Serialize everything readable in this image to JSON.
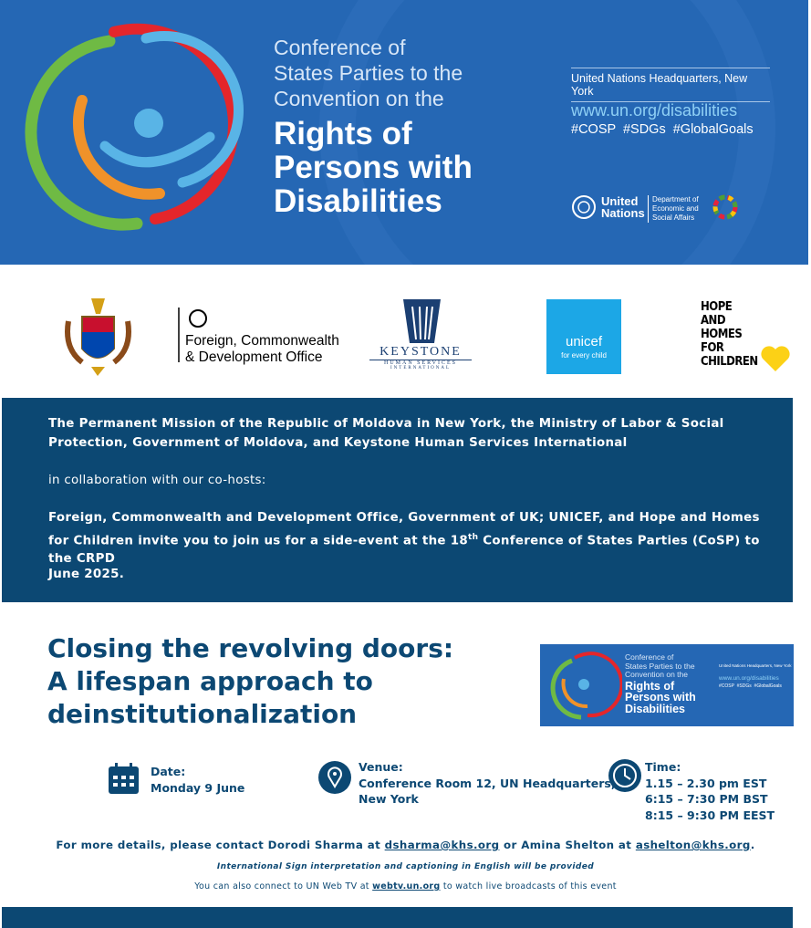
{
  "banner": {
    "title_small": [
      "Conference of",
      "States Parties to the",
      "Convention on the"
    ],
    "title_big": [
      "Rights of",
      "Persons with",
      "Disabilities"
    ],
    "location": "United Nations Headquarters, New York",
    "url": "www.un.org/disabilities",
    "hashtags": "#COSP  #SDGs  #GlobalGoals",
    "un_name": [
      "United",
      "Nations"
    ],
    "desa": [
      "Department of",
      "Economic and",
      "Social Affairs"
    ]
  },
  "logos": {
    "fcdo": [
      "Foreign, Commonwealth",
      "& Development Office"
    ],
    "keystone": [
      "KEYSTONE",
      "HUMAN SERVICES",
      "INTERNATIONAL"
    ],
    "unicef": [
      "unicef",
      "for every child"
    ],
    "hope": [
      "HOPE",
      "AND",
      "HOMES",
      "FOR",
      "CHILDREN"
    ]
  },
  "invite": {
    "p1": "The Permanent Mission of the Republic of Moldova in New York, the Ministry of Labor & Social Protection, Government of Moldova, and Keystone Human Services International",
    "p2": "in collaboration with our co-hosts:",
    "p3": [
      "Foreign, Commonwealth and Development Office, Government of UK; UNICEF, and Hope and Homes for Children invite you to join us for a side-event at the 18",
      "th",
      " Conference of States Parties (CoSP) to the CRPD"
    ],
    "p4": "June 2025."
  },
  "event": {
    "title": [
      "Closing the revolving doors:",
      "A lifespan approach to",
      "deinstitutionalization"
    ]
  },
  "details": {
    "date": {
      "label": "Date:",
      "lines": [
        "Monday 9 June"
      ]
    },
    "venue": {
      "label": "Venue:",
      "lines": [
        "Conference Room 12, UN Headquarters,",
        "New York"
      ]
    },
    "time": {
      "label": "Time:",
      "lines": [
        "1.15 – 2.30 pm EST",
        "6:15 – 7:30 PM BST",
        "8:15 – 9:30 PM EEST"
      ]
    }
  },
  "contact": [
    "For more details, please contact Dorodi Sharma at ",
    "dsharma@khs.org",
    " or Amina Shelton at ",
    "ashelton@khs.org",
    "."
  ],
  "note": "International Sign interpretation and captioning in English will be provided",
  "webtv": [
    "You can also connect to UN Web TV at ",
    "webtv.un.org",
    " to watch live broadcasts of this event"
  ]
}
